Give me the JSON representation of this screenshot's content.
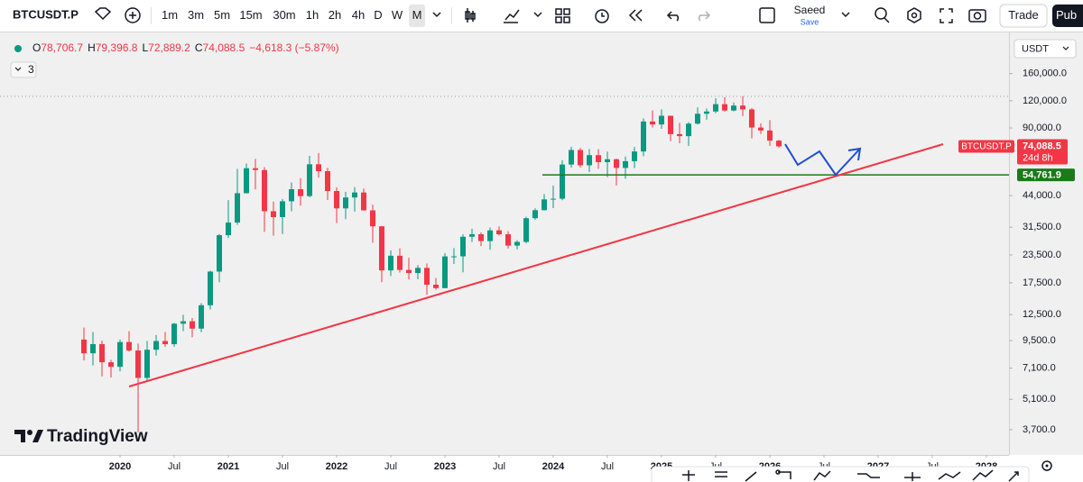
{
  "toolbar": {
    "symbol": "BTCUSDT.P",
    "intervals": [
      "1m",
      "3m",
      "5m",
      "15m",
      "30m",
      "1h",
      "2h",
      "4h",
      "D",
      "W",
      "M"
    ],
    "user": "Saeed",
    "save": "Save",
    "trade": "Trade",
    "publish": "Pub"
  },
  "legend": {
    "parts": [
      {
        "key": "O",
        "value": "78,706.7"
      },
      {
        "key": "H",
        "value": "79,396.8"
      },
      {
        "key": "L",
        "value": "72,889.2"
      },
      {
        "key": "C",
        "value": "74,088.5"
      }
    ],
    "change": "−4,618.3 (−5.87%)",
    "indicators": "3"
  },
  "currency": "USDT",
  "logo": "TradingView",
  "chart_data": {
    "type": "candlestick",
    "log_scale": true,
    "grid": false,
    "up_color": "#089981",
    "down_color": "#f23645",
    "categories": [
      "2019-09",
      "2019-10",
      "2019-11",
      "2019-12",
      "2020-01",
      "2020-02",
      "2020-03",
      "2020-04",
      "2020-05",
      "2020-06",
      "2020-07",
      "2020-08",
      "2020-09",
      "2020-10",
      "2020-11",
      "2020-12",
      "2021-01",
      "2021-02",
      "2021-03",
      "2021-04",
      "2021-05",
      "2021-06",
      "2021-07",
      "2021-08",
      "2021-09",
      "2021-10",
      "2021-11",
      "2021-12",
      "2022-01",
      "2022-02",
      "2022-03",
      "2022-04",
      "2022-05",
      "2022-06",
      "2022-07",
      "2022-08",
      "2022-09",
      "2022-10",
      "2022-11",
      "2022-12",
      "2023-01",
      "2023-02",
      "2023-03",
      "2023-04",
      "2023-05",
      "2023-06",
      "2023-07",
      "2023-08",
      "2023-09",
      "2023-10",
      "2023-11",
      "2023-12",
      "2024-01",
      "2024-02",
      "2024-03",
      "2024-04",
      "2024-05",
      "2024-06",
      "2024-07",
      "2024-08",
      "2024-09",
      "2024-10",
      "2024-11",
      "2024-12",
      "2025-01",
      "2025-02",
      "2025-03",
      "2025-04",
      "2025-05",
      "2025-06",
      "2025-07",
      "2025-08",
      "2025-09",
      "2025-10",
      "2025-11",
      "2025-12",
      "2026-01",
      "2026-02"
    ],
    "open": [
      9600,
      8300,
      9150,
      7550,
      7200,
      9350,
      8550,
      6400,
      8620,
      9450,
      9140,
      11350,
      11650,
      10780,
      13800,
      19700,
      28950,
      33100,
      45150,
      58800,
      57700,
      37300,
      35050,
      41450,
      47100,
      43800,
      61300,
      57000,
      46200,
      38450,
      43150,
      45500,
      37650,
      31800,
      19950,
      23300,
      20050,
      19400,
      20490,
      17150,
      16540,
      23130,
      23150,
      28480,
      29250,
      27210,
      30470,
      29230,
      25940,
      26970,
      34650,
      37720,
      42280,
      42580,
      61150,
      71300,
      60650,
      67500,
      62700,
      64650,
      58980,
      63330,
      70200,
      96400,
      93400,
      102400,
      84350,
      82550,
      94200,
      104600,
      107150,
      115750,
      108250,
      114050,
      109550,
      90400,
      87650,
      78706.7
    ],
    "high": [
      10900,
      10400,
      9500,
      7750,
      9600,
      10500,
      9200,
      9450,
      10070,
      10400,
      11450,
      12480,
      12050,
      14100,
      19900,
      29300,
      41950,
      58350,
      61800,
      64850,
      59500,
      41300,
      42450,
      50500,
      52950,
      67000,
      69000,
      59050,
      47990,
      45800,
      48200,
      47450,
      40000,
      31950,
      24650,
      25200,
      22800,
      21100,
      21450,
      18400,
      23950,
      25250,
      29200,
      31000,
      29850,
      31400,
      31800,
      30200,
      27500,
      35200,
      38450,
      44750,
      48950,
      64000,
      73800,
      72800,
      72000,
      72000,
      70100,
      65150,
      66500,
      73600,
      99600,
      108350,
      109600,
      102500,
      95000,
      95750,
      112000,
      110500,
      123200,
      124500,
      117900,
      126200,
      111200,
      94600,
      97900,
      79396.8
    ],
    "low": [
      7700,
      7300,
      6500,
      6430,
      6850,
      8450,
      3600,
      6150,
      8100,
      8900,
      8900,
      10500,
      9850,
      10370,
      13200,
      17600,
      28100,
      32300,
      45000,
      47000,
      30000,
      28800,
      29300,
      37300,
      39600,
      43300,
      53250,
      42000,
      32900,
      34300,
      37150,
      37550,
      26700,
      17600,
      18800,
      19500,
      18150,
      18150,
      15450,
      16250,
      16500,
      21350,
      19550,
      26950,
      25800,
      24800,
      28850,
      25150,
      24900,
      26550,
      34100,
      37600,
      38550,
      41900,
      59300,
      59200,
      56500,
      58400,
      53500,
      49000,
      52550,
      58900,
      66800,
      90500,
      89200,
      78250,
      76600,
      74500,
      93350,
      98200,
      105100,
      107300,
      107250,
      102000,
      80600,
      84400,
      74500,
      72889.2
    ],
    "close": [
      8300,
      9150,
      7550,
      7200,
      9350,
      8550,
      6400,
      8620,
      9450,
      9140,
      11350,
      11650,
      10780,
      13800,
      19700,
      28950,
      33100,
      45150,
      58800,
      57700,
      37300,
      35050,
      41450,
      47100,
      43800,
      61300,
      57000,
      46200,
      38450,
      43150,
      45500,
      37650,
      31800,
      19950,
      23300,
      20050,
      19400,
      20490,
      17150,
      16540,
      23130,
      23150,
      28480,
      29250,
      27210,
      30470,
      29230,
      25940,
      26970,
      34650,
      37720,
      42280,
      42580,
      61150,
      71300,
      60650,
      67500,
      62700,
      64650,
      58980,
      63330,
      70200,
      96400,
      93400,
      102400,
      84350,
      82550,
      94200,
      104600,
      107150,
      115750,
      108250,
      114050,
      109550,
      90400,
      87650,
      78706.7,
      74088.5
    ],
    "ylim": [
      2970,
      238000
    ],
    "yticks": [
      {
        "value": 3700,
        "label": "3,700.0"
      },
      {
        "value": 5100,
        "label": "5,100.0"
      },
      {
        "value": 7100,
        "label": "7,100.0"
      },
      {
        "value": 9500,
        "label": "9,500.0"
      },
      {
        "value": 12500,
        "label": "12,500.0"
      },
      {
        "value": 17500,
        "label": "17,500.0"
      },
      {
        "value": 23500,
        "label": "23,500.0"
      },
      {
        "value": 31500,
        "label": "31,500.0"
      },
      {
        "value": 44000,
        "label": "44,000.0"
      },
      {
        "value": 90000,
        "label": "90,000.0"
      },
      {
        "value": 120000,
        "label": "120,000.0"
      },
      {
        "value": 160000,
        "label": "160,000.0"
      }
    ],
    "xticks": [
      {
        "value": "2020-01",
        "label": "2020"
      },
      {
        "value": "2020-07",
        "label": "Jul"
      },
      {
        "value": "2021-01",
        "label": "2021"
      },
      {
        "value": "2021-07",
        "label": "Jul"
      },
      {
        "value": "2022-01",
        "label": "2022"
      },
      {
        "value": "2022-07",
        "label": "Jul"
      },
      {
        "value": "2023-01",
        "label": "2023"
      },
      {
        "value": "2023-07",
        "label": "Jul"
      },
      {
        "value": "2024-01",
        "label": "2024"
      },
      {
        "value": "2024-07",
        "label": "Jul"
      },
      {
        "value": "2025-01",
        "label": "2025"
      },
      {
        "value": "2025-07",
        "label": "Jul"
      },
      {
        "value": "2026-01",
        "label": "2026"
      },
      {
        "value": "2026-07",
        "label": "Jul"
      },
      {
        "value": "2027-01",
        "label": "2027"
      },
      {
        "value": "2027-07",
        "label": "Jul"
      },
      {
        "value": "2028-01",
        "label": "2028"
      }
    ],
    "price_tag": {
      "symbol": "BTCUSDT.P",
      "label": "74,088.5",
      "countdown": "24d 8h"
    },
    "level": {
      "value": 54761.9,
      "label": "54,761.9",
      "color": "#1b7a1b"
    }
  }
}
